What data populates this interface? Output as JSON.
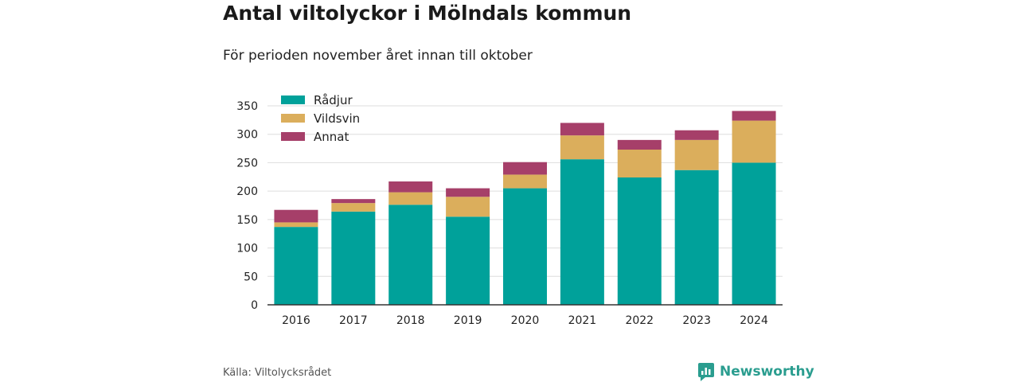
{
  "header": {
    "title": "Antal viltolyckor i Mölndals kommun",
    "subtitle": "För perioden november året innan till oktober"
  },
  "footer": {
    "source": "Källa: Viltolycksrådet",
    "brand": "Newsworthy",
    "brand_icon": "newsworthy-logo-icon"
  },
  "chart_data": {
    "type": "bar",
    "stacked": true,
    "categories": [
      "2016",
      "2017",
      "2018",
      "2019",
      "2020",
      "2021",
      "2022",
      "2023",
      "2024"
    ],
    "series": [
      {
        "name": "Rådjur",
        "color": "#00a19a",
        "values": [
          137,
          164,
          176,
          155,
          205,
          256,
          224,
          237,
          250
        ]
      },
      {
        "name": "Vildsvin",
        "color": "#dbae5c",
        "values": [
          8,
          15,
          22,
          35,
          24,
          42,
          49,
          53,
          74
        ]
      },
      {
        "name": "Annat",
        "color": "#a63f69",
        "values": [
          22,
          7,
          19,
          15,
          22,
          22,
          17,
          17,
          17
        ]
      }
    ],
    "ylim": [
      0,
      350
    ],
    "yticks": [
      "0",
      "50",
      "100",
      "150",
      "200",
      "250",
      "300",
      "350"
    ],
    "grid": true,
    "legend": "top-left"
  }
}
